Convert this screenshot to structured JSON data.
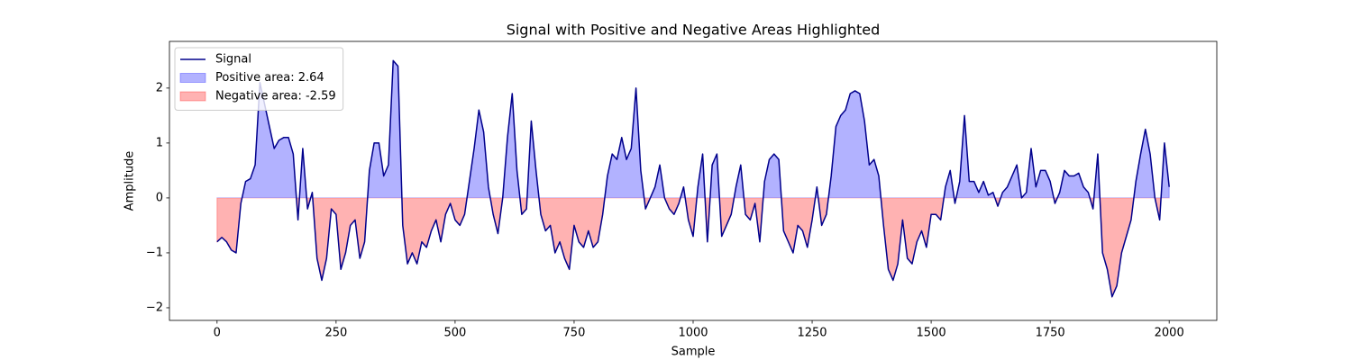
{
  "chart_data": {
    "type": "line",
    "title": "Signal with Positive and Negative Areas Highlighted",
    "xlabel": "Sample",
    "ylabel": "Amplitude",
    "x": [
      0,
      10,
      20,
      30,
      40,
      50,
      60,
      70,
      80,
      90,
      100,
      110,
      120,
      130,
      140,
      150,
      160,
      170,
      180,
      190,
      200,
      210,
      220,
      230,
      240,
      250,
      260,
      270,
      280,
      290,
      300,
      310,
      320,
      330,
      340,
      350,
      360,
      370,
      380,
      390,
      400,
      410,
      420,
      430,
      440,
      450,
      460,
      470,
      480,
      490,
      500,
      510,
      520,
      530,
      540,
      550,
      560,
      570,
      580,
      590,
      600,
      610,
      620,
      630,
      640,
      650,
      660,
      670,
      680,
      690,
      700,
      710,
      720,
      730,
      740,
      750,
      760,
      770,
      780,
      790,
      800,
      810,
      820,
      830,
      840,
      850,
      860,
      870,
      880,
      890,
      900,
      910,
      920,
      930,
      940,
      950,
      960,
      970,
      980,
      990,
      1000,
      1010,
      1020,
      1030,
      1040,
      1050,
      1060,
      1070,
      1080,
      1090,
      1100,
      1110,
      1120,
      1130,
      1140,
      1150,
      1160,
      1170,
      1180,
      1190,
      1200,
      1210,
      1220,
      1230,
      1240,
      1250,
      1260,
      1270,
      1280,
      1290,
      1300,
      1310,
      1320,
      1330,
      1340,
      1350,
      1360,
      1370,
      1380,
      1390,
      1400,
      1410,
      1420,
      1430,
      1440,
      1450,
      1460,
      1470,
      1480,
      1490,
      1500,
      1510,
      1520,
      1530,
      1540,
      1550,
      1560,
      1570,
      1580,
      1590,
      1600,
      1610,
      1620,
      1630,
      1640,
      1650,
      1660,
      1670,
      1680,
      1690,
      1700,
      1710,
      1720,
      1730,
      1740,
      1750,
      1760,
      1770,
      1780,
      1790,
      1800,
      1810,
      1820,
      1830,
      1840,
      1850,
      1860,
      1870,
      1880,
      1890,
      1900,
      1910,
      1920,
      1930,
      1940,
      1950,
      1960,
      1970,
      1980,
      1990,
      2000
    ],
    "series": [
      {
        "name": "Signal",
        "color": "#00008b",
        "values": [
          -0.8,
          -0.72,
          -0.8,
          -0.95,
          -1.0,
          -0.1,
          0.3,
          0.35,
          0.6,
          2.1,
          1.7,
          1.3,
          0.9,
          1.05,
          1.1,
          1.1,
          0.8,
          -0.4,
          0.9,
          -0.2,
          0.1,
          -1.1,
          -1.5,
          -1.1,
          -0.2,
          -0.3,
          -1.3,
          -1.0,
          -0.5,
          -0.4,
          -1.1,
          -0.8,
          0.5,
          1.0,
          1.0,
          0.4,
          0.6,
          2.5,
          2.4,
          -0.5,
          -1.2,
          -1.0,
          -1.2,
          -0.8,
          -0.9,
          -0.6,
          -0.4,
          -0.8,
          -0.3,
          -0.1,
          -0.4,
          -0.5,
          -0.3,
          0.3,
          0.9,
          1.6,
          1.2,
          0.2,
          -0.3,
          -0.65,
          0.0,
          1.1,
          1.9,
          0.5,
          -0.3,
          -0.2,
          1.4,
          0.5,
          -0.3,
          -0.6,
          -0.5,
          -1.0,
          -0.8,
          -1.1,
          -1.3,
          -0.5,
          -0.8,
          -0.9,
          -0.6,
          -0.9,
          -0.8,
          -0.3,
          0.4,
          0.8,
          0.7,
          1.1,
          0.7,
          0.9,
          2.0,
          0.5,
          -0.2,
          0.0,
          0.2,
          0.6,
          0.0,
          -0.2,
          -0.3,
          -0.1,
          0.2,
          -0.4,
          -0.7,
          0.2,
          0.8,
          -0.8,
          0.6,
          0.8,
          -0.7,
          -0.5,
          -0.3,
          0.2,
          0.6,
          -0.3,
          -0.4,
          -0.1,
          -0.8,
          0.3,
          0.7,
          0.8,
          0.7,
          -0.6,
          -0.8,
          -1.0,
          -0.5,
          -0.6,
          -0.9,
          -0.4,
          0.2,
          -0.5,
          -0.3,
          0.4,
          1.3,
          1.5,
          1.6,
          1.9,
          1.95,
          1.9,
          1.4,
          0.6,
          0.7,
          0.4,
          -0.5,
          -1.3,
          -1.5,
          -1.2,
          -0.4,
          -1.1,
          -1.2,
          -0.8,
          -0.6,
          -0.9,
          -0.3,
          -0.3,
          -0.4,
          0.2,
          0.5,
          -0.1,
          0.3,
          1.5,
          0.3,
          0.3,
          0.1,
          0.3,
          0.05,
          0.1,
          -0.15,
          0.1,
          0.2,
          0.4,
          0.6,
          0.0,
          0.1,
          0.9,
          0.2,
          0.5,
          0.5,
          0.3,
          -0.1,
          0.1,
          0.5,
          0.4,
          0.4,
          0.45,
          0.2,
          0.1,
          -0.2,
          0.8,
          -1.0,
          -1.3,
          -1.8,
          -1.6,
          -1.0,
          -0.7,
          -0.4,
          0.3,
          0.8,
          1.25,
          0.8,
          0.0,
          -0.4,
          1.0,
          0.2
        ]
      }
    ],
    "areas": [
      {
        "name": "Positive area: 2.64",
        "color": "#0000ff",
        "side": "above"
      },
      {
        "name": "Negative area: -2.59",
        "color": "#ff0000",
        "side": "below"
      }
    ],
    "xlim": [
      -100,
      2100
    ],
    "ylim": [
      -2.23,
      2.85
    ],
    "xticks": [
      0,
      250,
      500,
      750,
      1000,
      1250,
      1500,
      1750,
      2000
    ],
    "yticks": [
      {
        "value": -2,
        "label": "−2"
      },
      {
        "value": -1,
        "label": "−1"
      },
      0,
      1,
      2
    ],
    "legend": "upper-left"
  }
}
